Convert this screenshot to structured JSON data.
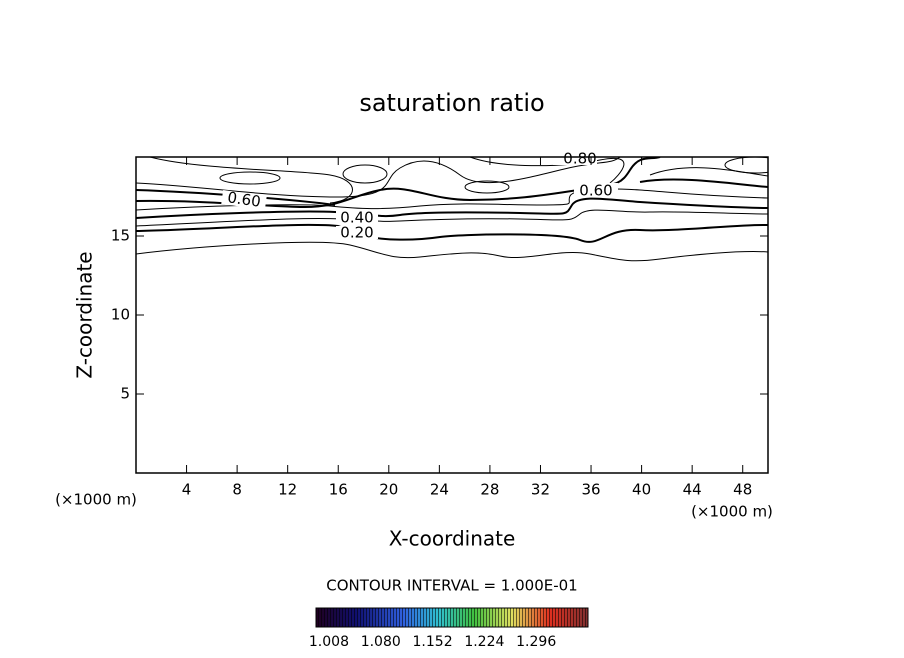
{
  "chart_data": {
    "type": "contour",
    "title": "saturation ratio",
    "xlabel": "X-coordinate",
    "ylabel": "Z-coordinate",
    "x_unit": "(×1000 m)",
    "y_unit": "(×1000 m)",
    "xlim": [
      0,
      50
    ],
    "xticks": [
      4,
      8,
      12,
      16,
      20,
      24,
      28,
      32,
      36,
      40,
      44,
      48
    ],
    "ylim": [
      0,
      20
    ],
    "yticks": [
      5,
      10,
      15
    ],
    "contour_labels": [
      "0.80",
      "0.60",
      "0.60",
      "0.40",
      "0.20"
    ],
    "contour_interval": "CONTOUR INTERVAL = 1.000E-01",
    "clim": [
      0.99,
      1.368
    ],
    "cticks": [
      1.008,
      {
        "value": 1.08,
        "label": "1.080"
      },
      1.152,
      1.224,
      1.296
    ]
  }
}
